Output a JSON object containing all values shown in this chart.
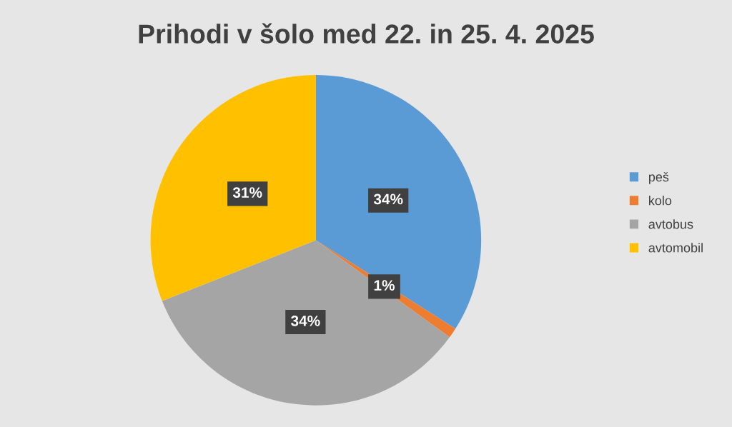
{
  "chart_data": {
    "type": "pie",
    "title": "Prihodi v šolo med 22. in 25. 4. 2025",
    "categories": [
      "peš",
      "kolo",
      "avtobus",
      "avtomobil"
    ],
    "values": [
      34,
      1,
      34,
      31
    ],
    "colors": [
      "#5b9bd5",
      "#ed7d31",
      "#a5a5a5",
      "#ffc000"
    ],
    "value_labels": [
      "34%",
      "1%",
      "34%",
      "31%"
    ],
    "legend": "right"
  }
}
